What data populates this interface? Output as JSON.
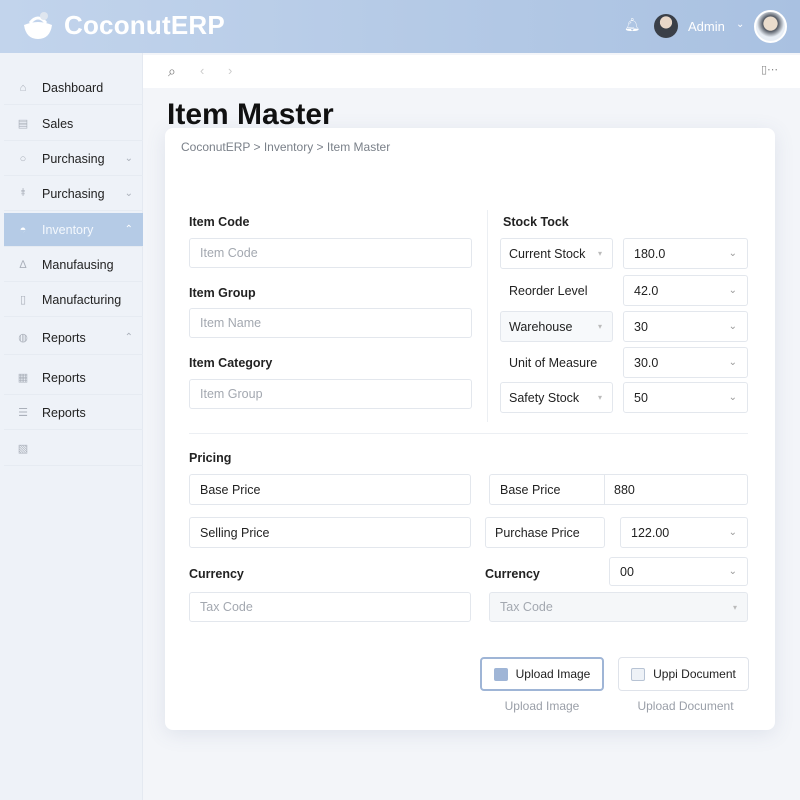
{
  "app": {
    "name": "CoconutERP",
    "user": "Admin"
  },
  "sidebar": {
    "items": [
      {
        "label": "Dashboard",
        "icon": "home-icon"
      },
      {
        "label": "Sales",
        "icon": "sales-icon"
      },
      {
        "label": "Purchasing",
        "icon": "location-icon",
        "chevron": "down"
      },
      {
        "label": "Purchasing",
        "icon": "cart-icon",
        "chevron": "down"
      },
      {
        "label": "Inventory",
        "icon": "coconut-icon",
        "chevron": "up",
        "active": true
      },
      {
        "label": "Manufausing",
        "icon": "bell-icon"
      },
      {
        "label": "Manufacturing",
        "icon": "document-icon"
      },
      {
        "label": "Reports",
        "icon": "globe-icon",
        "chevron": "up"
      },
      {
        "label": "Reports",
        "icon": "calendar-icon"
      },
      {
        "label": "Reports",
        "icon": "list-icon"
      },
      {
        "label": "",
        "icon": "file-icon"
      }
    ]
  },
  "page": {
    "title": "Item Master",
    "breadcrumb": "CoconutERP > Inventory > Item Master"
  },
  "form": {
    "item_code": {
      "label": "Item Code",
      "placeholder": "Item Code"
    },
    "item_group": {
      "label": "Item Group",
      "placeholder": "Item Name"
    },
    "item_category": {
      "label": "Item Category",
      "placeholder": "Item Group"
    },
    "stock": {
      "heading": "Stock Tock",
      "rows": [
        {
          "label": "Current Stock",
          "value": "180.0"
        },
        {
          "label": "Reorder Level",
          "value": "42.0"
        },
        {
          "label": "Warehouse",
          "value": "30"
        },
        {
          "label": "Unit of Measure",
          "value": "30.0"
        },
        {
          "label": "Safety Stock",
          "value": "50"
        }
      ]
    },
    "pricing": {
      "heading": "Pricing",
      "base_price_left": "Base Price",
      "base_price_label": "Base Price",
      "base_price_value": "880",
      "selling_price": "Selling Price",
      "purchase_price_label": "Purchase Price",
      "purchase_price_value": "122.00",
      "currency_left": "Currency",
      "currency_right": "Currency",
      "currency_value": "00",
      "tax_code_left": "Tax Code",
      "tax_code_right": "Tax Code"
    },
    "buttons": {
      "upload_image": "Upload Image",
      "upload_document": "Uppi Document",
      "upload_image_caption": "Upload Image",
      "upload_document_caption": "Upload Document"
    }
  },
  "colors": {
    "header": "#b8cde8",
    "active_nav": "#b5cbe6",
    "accent_border": "#9fb5d6"
  }
}
